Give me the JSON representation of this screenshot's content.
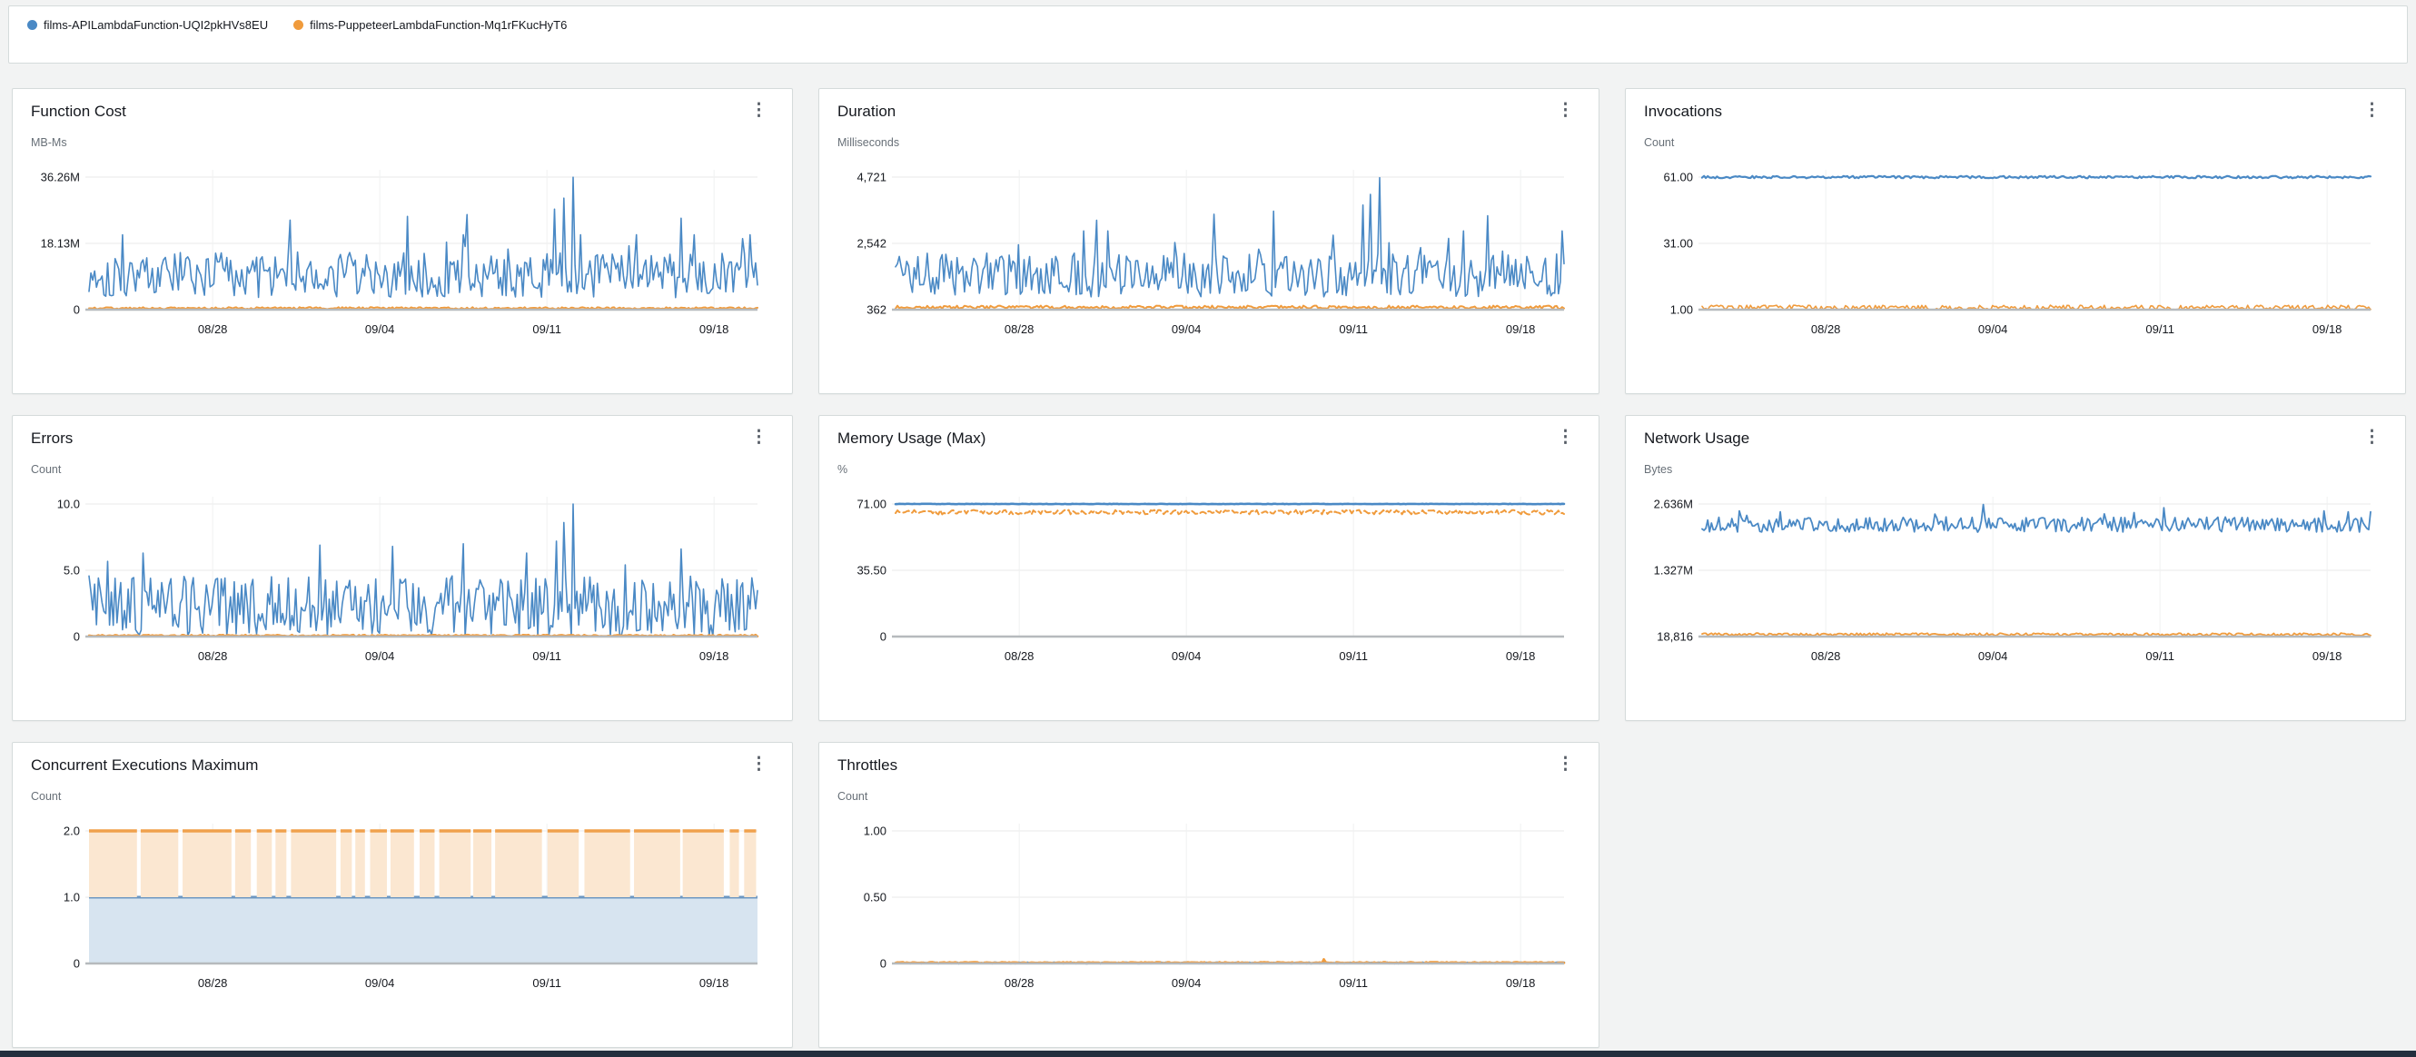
{
  "icons": {
    "kebab": "⋮"
  },
  "legend": {
    "items": [
      {
        "label": "films-APILambdaFunction-UQI2pkHVs8EU",
        "color": "#4a89c5"
      },
      {
        "label": "films-PuppeteerLambdaFunction-Mq1rFKucHyT6",
        "color": "#f09b3c"
      }
    ]
  },
  "colors": {
    "page_background": "#f2f3f3",
    "panel_background": "#ffffff",
    "panel_border": "#d5dbdb",
    "series_blue": "#4a89c5",
    "series_orange": "#f09b3c",
    "area_blue_fill": "#d7e4f0",
    "area_blue_line": "#6d97c1",
    "area_orange_fill": "#fbe7d1",
    "area_orange_line": "#f0a14c",
    "axis_baseline": "#b6babd",
    "gridline": "#e9eaea",
    "footer_bar": "#232f3e"
  },
  "chart_data": [
    {
      "id": "function-cost",
      "type": "line",
      "title": "Function Cost",
      "unit": "MB-Ms",
      "ymin": 0,
      "ymax": 36.26,
      "yticks": [
        [
          "36.26M",
          36.26
        ],
        [
          "18.13M",
          18.13
        ],
        [
          "0",
          0
        ]
      ],
      "xticks": [
        "08/28",
        "09/04",
        "09/11",
        "09/18"
      ],
      "xtick_pos": [
        0.185,
        0.435,
        0.685,
        0.935
      ],
      "series": [
        {
          "name": "films-APILambdaFunction-UQI2pkHVs8EU",
          "kind": "line",
          "color": "#4a89c5",
          "seed": 101,
          "n": 360,
          "base": 9.5,
          "amp": 6.2,
          "min": 1.4,
          "max": 20.5,
          "spikeProb": 0.05,
          "spikeMax": 27,
          "width": 1.6,
          "spikes": [
            [
              0.3,
              24.5
            ],
            [
              0.475,
              25.5
            ],
            [
              0.565,
              26
            ],
            [
              0.695,
              27.5
            ],
            [
              0.71,
              30.5
            ],
            [
              0.725,
              36.2
            ],
            [
              0.885,
              25
            ]
          ]
        },
        {
          "name": "films-PuppeteerLambdaFunction-Mq1rFKucHyT6",
          "kind": "line",
          "color": "#f09b3c",
          "seed": 201,
          "n": 360,
          "base": 0.4,
          "amp": 0.28,
          "min": 0.08,
          "max": 0.95,
          "width": 2
        }
      ]
    },
    {
      "id": "duration",
      "type": "line",
      "title": "Duration",
      "unit": "Milliseconds",
      "ymin": 362,
      "ymax": 4721,
      "yticks": [
        [
          "4,721",
          4721
        ],
        [
          "2,542",
          2542
        ],
        [
          "362",
          362
        ]
      ],
      "xticks": [
        "08/28",
        "09/04",
        "09/11",
        "09/18"
      ],
      "xtick_pos": [
        0.185,
        0.435,
        0.685,
        0.935
      ],
      "series": [
        {
          "name": "films-APILambdaFunction-UQI2pkHVs8EU",
          "kind": "line",
          "color": "#4a89c5",
          "seed": 102,
          "n": 360,
          "base": 1500,
          "amp": 720,
          "min": 480,
          "max": 2950,
          "spikeProb": 0.05,
          "spikeMax": 3400,
          "width": 1.6,
          "spikes": [
            [
              0.3,
              3300
            ],
            [
              0.475,
              3500
            ],
            [
              0.565,
              3600
            ],
            [
              0.7,
              3800
            ],
            [
              0.71,
              4150
            ],
            [
              0.725,
              4700
            ],
            [
              0.885,
              3450
            ]
          ]
        },
        {
          "name": "films-PuppeteerLambdaFunction-Mq1rFKucHyT6",
          "kind": "line",
          "color": "#f09b3c",
          "seed": 202,
          "n": 360,
          "base": 440,
          "amp": 55,
          "min": 380,
          "max": 580,
          "width": 2
        }
      ]
    },
    {
      "id": "invocations",
      "type": "line",
      "title": "Invocations",
      "unit": "Count",
      "ymin": 1,
      "ymax": 61,
      "yticks": [
        [
          "61.00",
          61
        ],
        [
          "31.00",
          31
        ],
        [
          "1.00",
          1
        ]
      ],
      "xticks": [
        "08/28",
        "09/04",
        "09/11",
        "09/18"
      ],
      "xtick_pos": [
        0.185,
        0.435,
        0.685,
        0.935
      ],
      "series": [
        {
          "name": "films-APILambdaFunction-UQI2pkHVs8EU",
          "kind": "line",
          "color": "#4a89c5",
          "seed": 103,
          "n": 360,
          "base": 61,
          "amp": 0.55,
          "min": 59.6,
          "max": 61.5,
          "width": 2.2
        },
        {
          "name": "films-PuppeteerLambdaFunction-Mq1rFKucHyT6",
          "kind": "line",
          "color": "#f09b3c",
          "seed": 203,
          "n": 360,
          "base": 1.9,
          "amp": 1.1,
          "min": 1.02,
          "max": 4.6,
          "width": 1.6
        }
      ]
    },
    {
      "id": "errors",
      "type": "line",
      "title": "Errors",
      "unit": "Count",
      "ymin": 0,
      "ymax": 10,
      "yticks": [
        [
          "10.0",
          10
        ],
        [
          "5.0",
          5
        ],
        [
          "0",
          0
        ]
      ],
      "xticks": [
        "08/28",
        "09/04",
        "09/11",
        "09/18"
      ],
      "xtick_pos": [
        0.185,
        0.435,
        0.685,
        0.935
      ],
      "series": [
        {
          "name": "films-APILambdaFunction-UQI2pkHVs8EU",
          "kind": "line",
          "color": "#4a89c5",
          "seed": 104,
          "n": 360,
          "base": 2.3,
          "amp": 2.3,
          "min": 0,
          "max": 6.3,
          "spikeProb": 0.035,
          "spikeMax": 7,
          "width": 1.6,
          "spikes": [
            [
              0.345,
              6.9
            ],
            [
              0.455,
              6.8
            ],
            [
              0.56,
              7
            ],
            [
              0.7,
              7.2
            ],
            [
              0.71,
              8.6
            ],
            [
              0.725,
              10
            ],
            [
              0.885,
              6.6
            ]
          ]
        },
        {
          "name": "films-PuppeteerLambdaFunction-Mq1rFKucHyT6",
          "kind": "line",
          "color": "#f09b3c",
          "seed": 204,
          "n": 360,
          "base": 0.07,
          "amp": 0.06,
          "min": 0,
          "max": 0.2,
          "width": 2.4
        }
      ]
    },
    {
      "id": "memory-usage-max",
      "type": "line",
      "title": "Memory Usage (Max)",
      "unit": "%",
      "ymin": 0,
      "ymax": 71,
      "yticks": [
        [
          "71.00",
          71
        ],
        [
          "35.50",
          35.5
        ],
        [
          "0",
          0
        ]
      ],
      "xticks": [
        "08/28",
        "09/04",
        "09/11",
        "09/18"
      ],
      "xtick_pos": [
        0.185,
        0.435,
        0.685,
        0.935
      ],
      "series": [
        {
          "name": "films-PuppeteerLambdaFunction-Mq1rFKucHyT6",
          "kind": "line",
          "color": "#f09b3c",
          "seed": 205,
          "n": 360,
          "base": 66.6,
          "amp": 1.2,
          "min": 64.2,
          "max": 68.6,
          "width": 2,
          "dash": "7 4"
        },
        {
          "name": "films-APILambdaFunction-UQI2pkHVs8EU",
          "kind": "line",
          "color": "#4a89c5",
          "seed": 105,
          "n": 360,
          "base": 71,
          "amp": 0.12,
          "min": 70.5,
          "max": 71.3,
          "width": 2.6
        }
      ]
    },
    {
      "id": "network-usage",
      "type": "line",
      "title": "Network Usage",
      "unit": "Bytes",
      "ymin": 18816,
      "ymax": 2636000,
      "yticks": [
        [
          "2.636M",
          2636000
        ],
        [
          "1.327M",
          1327000
        ],
        [
          "18,816",
          18816
        ]
      ],
      "xticks": [
        "08/28",
        "09/04",
        "09/11",
        "09/18"
      ],
      "xtick_pos": [
        0.185,
        0.435,
        0.685,
        0.935
      ],
      "series": [
        {
          "name": "films-APILambdaFunction-UQI2pkHVs8EU",
          "kind": "line",
          "color": "#4a89c5",
          "seed": 106,
          "n": 360,
          "base": 2230000,
          "amp": 150000,
          "min": 1980000,
          "max": 2480000,
          "spikeProb": 0.03,
          "spikeMax": 2540000,
          "width": 1.8,
          "spikes": [
            [
              0.055,
              2500000
            ],
            [
              0.42,
              2625000
            ],
            [
              0.69,
              2560000
            ],
            [
              0.93,
              2500000
            ]
          ]
        },
        {
          "name": "films-PuppeteerLambdaFunction-Mq1rFKucHyT6",
          "kind": "line",
          "color": "#f09b3c",
          "seed": 206,
          "n": 360,
          "base": 62000,
          "amp": 26000,
          "min": 21000,
          "max": 135000,
          "width": 1.8
        }
      ]
    },
    {
      "id": "concurrent-executions-maximum",
      "type": "area",
      "title": "Concurrent Executions Maximum",
      "unit": "Count",
      "ymin": 0,
      "ymax": 2,
      "yticks": [
        [
          "2.0",
          2
        ],
        [
          "1.0",
          1
        ],
        [
          "0",
          0
        ]
      ],
      "xticks": [
        "08/28",
        "09/04",
        "09/11",
        "09/18"
      ],
      "xtick_pos": [
        0.185,
        0.435,
        0.685,
        0.935
      ],
      "series": [
        {
          "name": "films-APILambdaFunction-UQI2pkHVs8EU",
          "kind": "band",
          "from": 0,
          "to": 1,
          "fill": "#d7e4f0",
          "color": "#6d97c1",
          "width": 3
        },
        {
          "name": "films-PuppeteerLambdaFunction-Mq1rFKucHyT6",
          "kind": "band-gaps",
          "from": 1,
          "to": 2,
          "fill": "#fbe7d1",
          "color": "#f0a14c",
          "width": 3.5,
          "seed": 107,
          "onMin": 10,
          "onMax": 55,
          "offMin": 2.5,
          "offMax": 7
        }
      ]
    },
    {
      "id": "throttles",
      "type": "line",
      "title": "Throttles",
      "unit": "Count",
      "ymin": 0,
      "ymax": 1,
      "yticks": [
        [
          "1.00",
          1
        ],
        [
          "0.50",
          0.5
        ],
        [
          "0",
          0
        ]
      ],
      "xticks": [
        "08/28",
        "09/04",
        "09/11",
        "09/18"
      ],
      "xtick_pos": [
        0.185,
        0.435,
        0.685,
        0.935
      ],
      "series": [
        {
          "name": "films-APILambdaFunction-UQI2pkHVs8EU",
          "kind": "line",
          "color": "#4a89c5",
          "seed": 108,
          "n": 360,
          "base": 0.004,
          "amp": 0.003,
          "min": 0,
          "max": 0.012,
          "width": 2.6
        },
        {
          "name": "films-PuppeteerLambdaFunction-Mq1rFKucHyT6",
          "kind": "line",
          "color": "#f09b3c",
          "seed": 208,
          "n": 360,
          "base": 0.006,
          "amp": 0.004,
          "min": 0,
          "max": 0.04,
          "width": 2.6,
          "dash": "47 3",
          "spikes": [
            [
              0.64,
              0.032
            ]
          ]
        }
      ]
    }
  ]
}
